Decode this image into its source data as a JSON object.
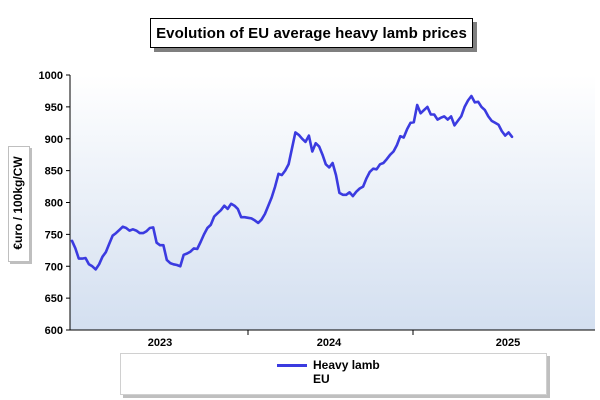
{
  "chart_data": {
    "type": "line",
    "title": "Evolution of EU average heavy lamb prices",
    "ylabel": "€uro / 100kg/CW",
    "xlabel": "",
    "ylim": [
      600,
      1000
    ],
    "yticks": [
      "600",
      "650",
      "700",
      "750",
      "800",
      "850",
      "900",
      "950",
      "1000"
    ],
    "xtick_labels": [
      "2023",
      "2024",
      "2025"
    ],
    "grid": false,
    "legend_position": "bottom",
    "legend": [
      "Heavy lamb",
      "EU"
    ],
    "colors": {
      "series": "#3b3be0",
      "plot_background_top": "#ffffff",
      "plot_background_bottom": "#d3dff0"
    },
    "series": [
      {
        "name": "Heavy lamb EU",
        "values": [
          740,
          728,
          712,
          712,
          713,
          703,
          700,
          695,
          703,
          715,
          722,
          735,
          748,
          752,
          757,
          762,
          760,
          756,
          758,
          756,
          752,
          752,
          755,
          760,
          761,
          737,
          733,
          733,
          710,
          705,
          703,
          702,
          700,
          718,
          720,
          723,
          728,
          727,
          738,
          750,
          760,
          765,
          778,
          783,
          788,
          795,
          790,
          798,
          795,
          790,
          777,
          777,
          776,
          775,
          772,
          768,
          773,
          782,
          795,
          808,
          825,
          845,
          843,
          850,
          860,
          885,
          910,
          906,
          900,
          895,
          905,
          880,
          893,
          888,
          875,
          860,
          855,
          862,
          843,
          815,
          812,
          812,
          816,
          810,
          817,
          822,
          825,
          838,
          848,
          853,
          852,
          860,
          862,
          868,
          875,
          880,
          890,
          904,
          902,
          915,
          925,
          926,
          953,
          940,
          945,
          950,
          938,
          938,
          930,
          933,
          935,
          930,
          935,
          921,
          928,
          935,
          950,
          960,
          967,
          957,
          958,
          950,
          945,
          935,
          928,
          925,
          922,
          912,
          905,
          910,
          903
        ]
      }
    ]
  }
}
